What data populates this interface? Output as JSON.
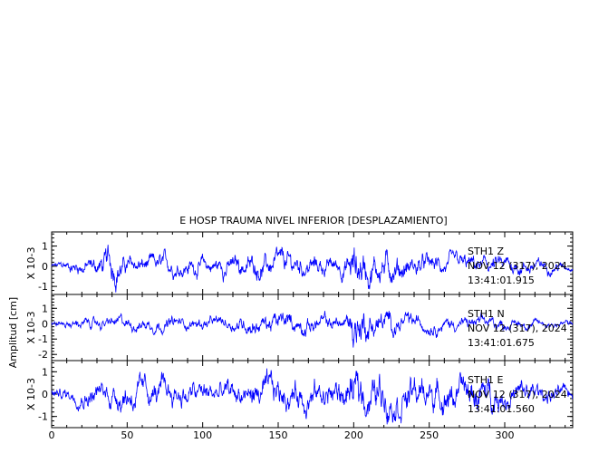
{
  "chart_data": {
    "type": "line",
    "title": "E HOSP TRAUMA NIVEL INFERIOR [DESPLAZAMIENTO]",
    "ylabel": "Amplitud [cm]",
    "xlim": [
      0,
      345
    ],
    "x_ticks": [
      0,
      50,
      100,
      150,
      200,
      250,
      300
    ],
    "line_color": "#0000ff",
    "panels": [
      {
        "channel": "STH1  Z",
        "date": "NOV 12 (317), 2024",
        "time": "13:41:01.915",
        "scale": "X 10-3",
        "ylim": [
          -1.4,
          1.7
        ],
        "y_ticks": [
          -1,
          0,
          1
        ],
        "envelope": [
          [
            0,
            0.2
          ],
          [
            30,
            0.7
          ],
          [
            40,
            1.2
          ],
          [
            50,
            0.6
          ],
          [
            100,
            0.6
          ],
          [
            150,
            0.8
          ],
          [
            190,
            0.6
          ],
          [
            197,
            1.0
          ],
          [
            200,
            1.6
          ],
          [
            210,
            1.2
          ],
          [
            230,
            0.9
          ],
          [
            260,
            0.6
          ],
          [
            300,
            0.6
          ],
          [
            330,
            0.4
          ],
          [
            345,
            0.2
          ]
        ]
      },
      {
        "channel": "STH1  N",
        "date": "NOV 12 (317), 2024",
        "time": "13:41:01.675",
        "scale": "X 10-3",
        "ylim": [
          -2.4,
          1.9
        ],
        "y_ticks": [
          -2,
          -1,
          0,
          1
        ],
        "envelope": [
          [
            0,
            0.3
          ],
          [
            50,
            0.6
          ],
          [
            100,
            0.5
          ],
          [
            150,
            0.9
          ],
          [
            190,
            0.7
          ],
          [
            197,
            1.0
          ],
          [
            200,
            2.2
          ],
          [
            210,
            1.4
          ],
          [
            230,
            0.8
          ],
          [
            260,
            0.6
          ],
          [
            300,
            0.5
          ],
          [
            345,
            0.3
          ]
        ]
      },
      {
        "channel": "STH1  E",
        "date": "NOV 12 (317), 2024",
        "time": "13:41:01.560",
        "scale": "X 10-3",
        "ylim": [
          -1.5,
          1.5
        ],
        "y_ticks": [
          -1,
          0,
          1
        ],
        "envelope": [
          [
            0,
            0.3
          ],
          [
            50,
            0.9
          ],
          [
            100,
            0.7
          ],
          [
            150,
            0.9
          ],
          [
            190,
            0.9
          ],
          [
            200,
            1.4
          ],
          [
            215,
            1.2
          ],
          [
            240,
            1.0
          ],
          [
            280,
            1.0
          ],
          [
            300,
            0.8
          ],
          [
            345,
            0.4
          ]
        ]
      }
    ]
  }
}
